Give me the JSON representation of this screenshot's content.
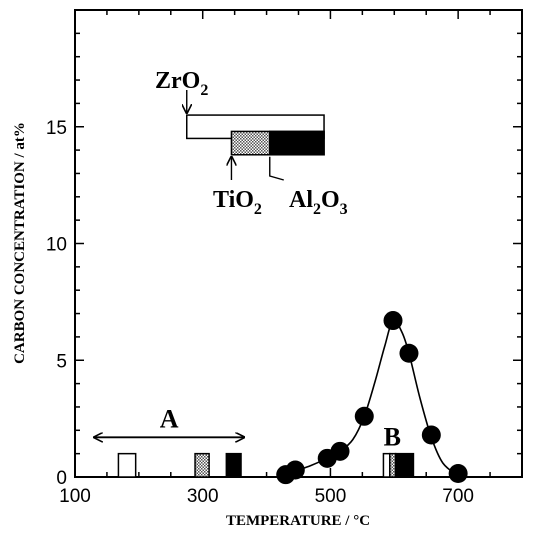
{
  "chart_data": {
    "type": "scatter",
    "title": "",
    "xlabel": "TEMPERATURE / °C",
    "ylabel": "CARBON CONCENTRATION / at%",
    "xlim": [
      100,
      800
    ],
    "ylim": [
      0,
      20
    ],
    "x_ticks": [
      100,
      300,
      500,
      700
    ],
    "y_ticks": [
      0,
      5,
      10,
      15
    ],
    "x_tick_labels": [
      "100",
      "300",
      "500",
      "700"
    ],
    "y_tick_labels": [
      "0",
      "5",
      "10",
      "15"
    ],
    "grid": false,
    "series": [
      {
        "marker": "filled-circle",
        "fitted_curve": true,
        "points": [
          {
            "x": 430,
            "y": 0.1
          },
          {
            "x": 445,
            "y": 0.3
          },
          {
            "x": 495,
            "y": 0.8
          },
          {
            "x": 515,
            "y": 1.1
          },
          {
            "x": 553,
            "y": 2.6
          },
          {
            "x": 598,
            "y": 6.7
          },
          {
            "x": 623,
            "y": 5.3
          },
          {
            "x": 658,
            "y": 1.8
          },
          {
            "x": 700,
            "y": 0.15
          }
        ]
      }
    ],
    "curve": [
      {
        "x": 430,
        "y": 0.1
      },
      {
        "x": 445,
        "y": 0.25
      },
      {
        "x": 470,
        "y": 0.5
      },
      {
        "x": 495,
        "y": 0.8
      },
      {
        "x": 515,
        "y": 1.1
      },
      {
        "x": 535,
        "y": 1.6
      },
      {
        "x": 553,
        "y": 2.6
      },
      {
        "x": 570,
        "y": 4.1
      },
      {
        "x": 585,
        "y": 5.6
      },
      {
        "x": 598,
        "y": 6.7
      },
      {
        "x": 612,
        "y": 6.2
      },
      {
        "x": 623,
        "y": 5.3
      },
      {
        "x": 640,
        "y": 3.4
      },
      {
        "x": 658,
        "y": 1.7
      },
      {
        "x": 676,
        "y": 0.6
      },
      {
        "x": 700,
        "y": 0.05
      }
    ],
    "regions": {
      "A": {
        "label": "A",
        "x_range": [
          130,
          365
        ],
        "y": 1.7
      },
      "B": {
        "label": "B",
        "x_center": 600
      }
    },
    "materials": [
      {
        "name": "ZrO2",
        "label": "ZrO",
        "sub": "2",
        "fill": "white"
      },
      {
        "name": "TiO2",
        "label": "TiO",
        "sub": "2",
        "fill": "hatched"
      },
      {
        "name": "Al2O3",
        "label": "Al",
        "sub": "2",
        "label2": "O",
        "sub2": "3",
        "fill": "black"
      }
    ],
    "legend_bars": [
      {
        "material": "ZrO2",
        "x_range": [
          275,
          490
        ],
        "y_range": [
          14.5,
          15.5
        ],
        "fill": "white"
      },
      {
        "material": "TiO2",
        "x_range": [
          345,
          490
        ],
        "y_range": [
          13.8,
          14.8
        ],
        "fill": "hatched"
      },
      {
        "material": "Al2O3",
        "x_range": [
          405,
          490
        ],
        "y_range": [
          13.8,
          14.8
        ],
        "fill": "black"
      }
    ],
    "small_bars": [
      {
        "material": "ZrO2",
        "x_range": [
          168,
          195
        ],
        "y_range": [
          0,
          1.0
        ],
        "fill": "white"
      },
      {
        "material": "TiO2",
        "x_range": [
          288,
          310
        ],
        "y_range": [
          0,
          1.0
        ],
        "fill": "hatched"
      },
      {
        "material": "Al2O3",
        "x_range": [
          337,
          360
        ],
        "y_range": [
          0,
          1.0
        ],
        "fill": "black"
      },
      {
        "material": "ZrO2",
        "x_range": [
          583,
          593
        ],
        "y_range": [
          0,
          1.0
        ],
        "fill": "white"
      },
      {
        "material": "TiO2",
        "x_range": [
          593,
          602
        ],
        "y_range": [
          0,
          1.0
        ],
        "fill": "hatched"
      },
      {
        "material": "Al2O3",
        "x_range": [
          602,
          630
        ],
        "y_range": [
          0,
          1.0
        ],
        "fill": "black"
      }
    ]
  }
}
